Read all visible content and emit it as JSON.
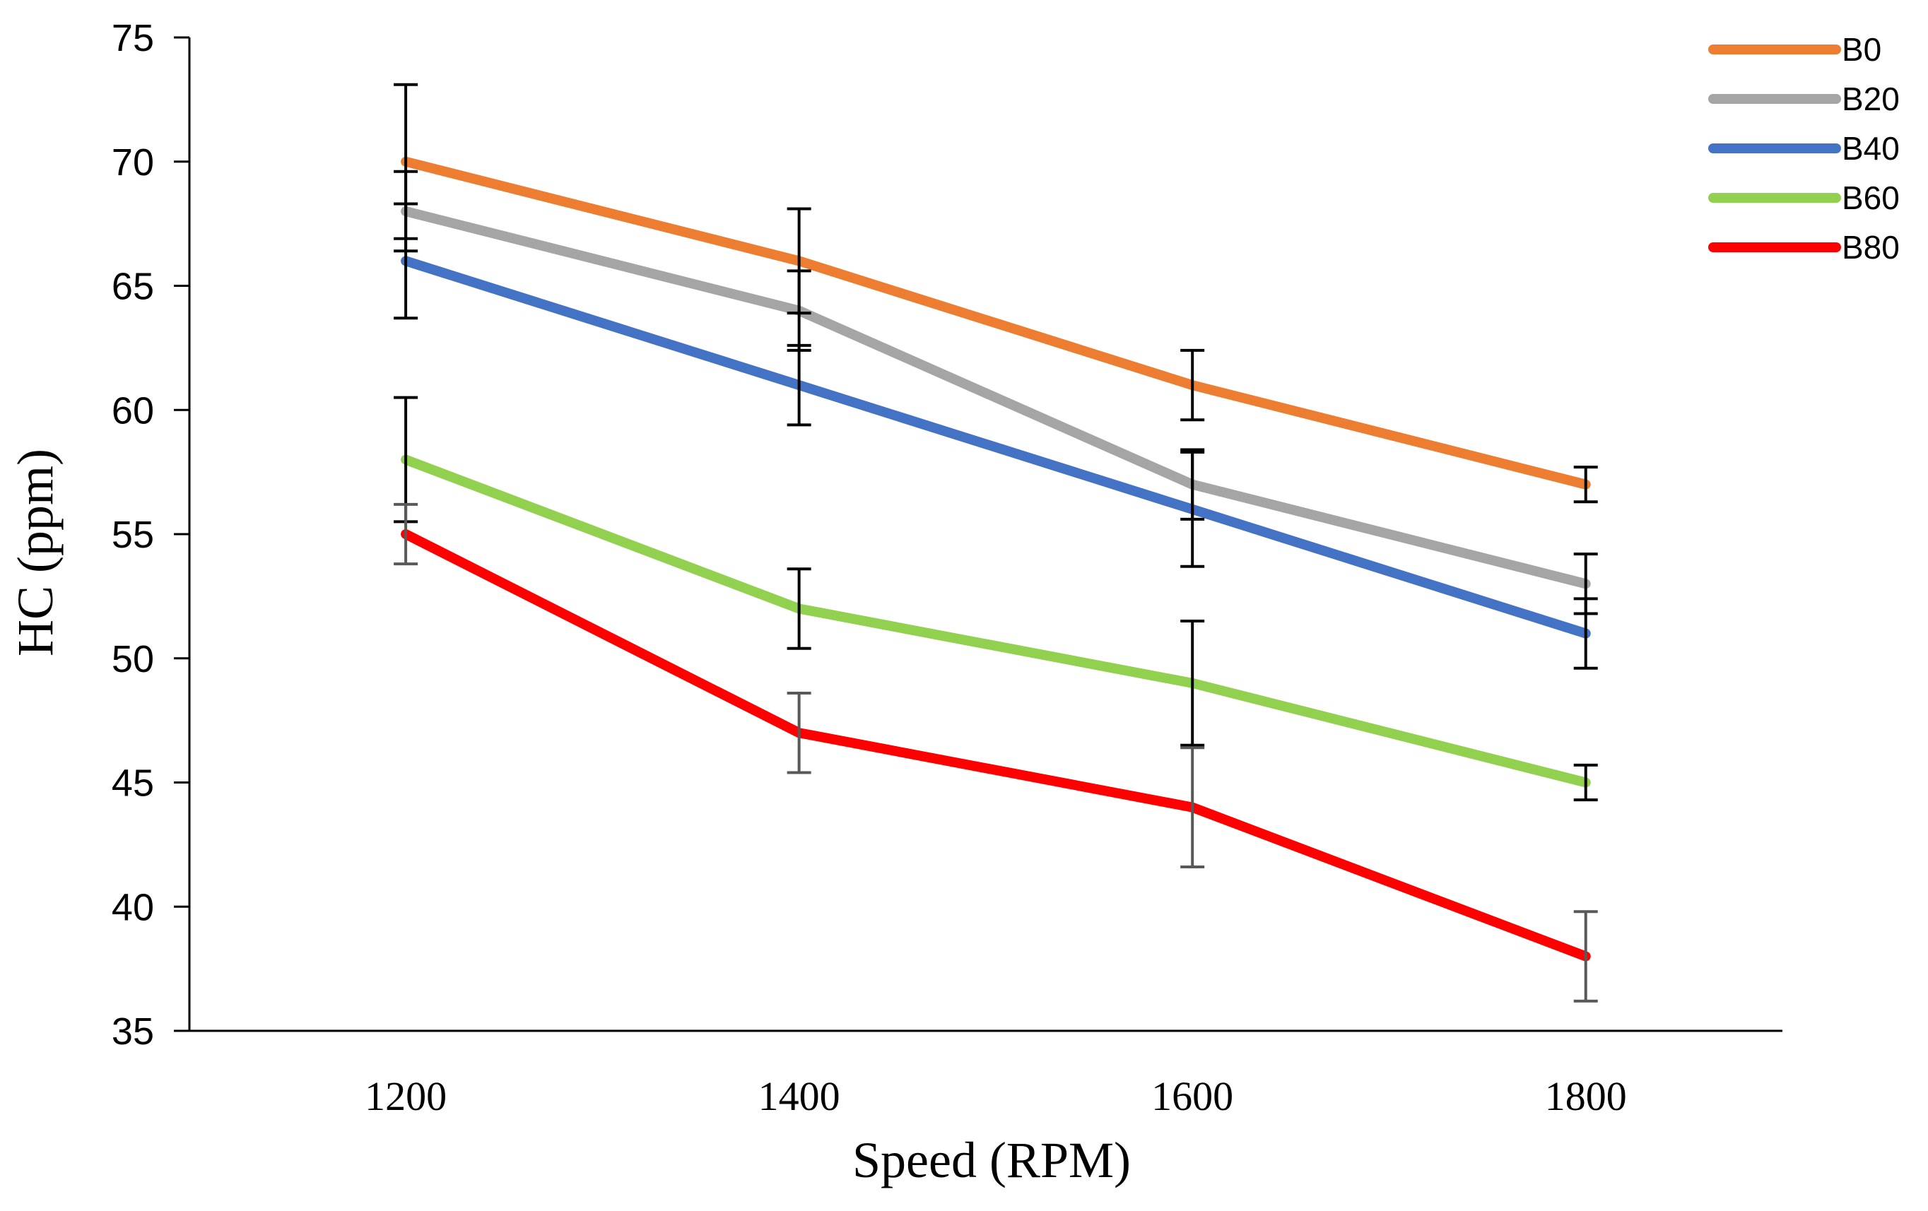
{
  "chart_data": {
    "type": "line",
    "title": "",
    "xlabel": "Speed (RPM)",
    "ylabel": "HC (ppm)",
    "x": [
      1200,
      1400,
      1600,
      1800
    ],
    "x_tick_labels": [
      "1200",
      "1400",
      "1600",
      "1800"
    ],
    "xlim": [
      1090,
      1900
    ],
    "ylim": [
      35,
      75
    ],
    "y_ticks": [
      35,
      40,
      45,
      50,
      55,
      60,
      65,
      70,
      75
    ],
    "y_tick_labels": [
      "35",
      "40",
      "45",
      "50",
      "55",
      "60",
      "65",
      "70",
      "75"
    ],
    "grid": false,
    "legend_position": "top-right",
    "series": [
      {
        "name": "B0",
        "color": "#ED7D31",
        "values": [
          70,
          66,
          61,
          57
        ],
        "error": [
          3.1,
          2.1,
          1.4,
          0.7
        ],
        "error_color": "#000000"
      },
      {
        "name": "B20",
        "color": "#A5A5A5",
        "values": [
          68,
          64,
          57,
          53
        ],
        "error": [
          1.6,
          1.6,
          1.4,
          1.2
        ],
        "error_color": "#000000"
      },
      {
        "name": "B40",
        "color": "#4472C4",
        "values": [
          66,
          61,
          56,
          51
        ],
        "error": [
          2.3,
          1.6,
          2.3,
          1.4
        ],
        "error_color": "#000000"
      },
      {
        "name": "B60",
        "color": "#92D050",
        "values": [
          58,
          52,
          49,
          45
        ],
        "error": [
          2.5,
          1.6,
          2.5,
          0.7
        ],
        "error_color": "#000000"
      },
      {
        "name": "B80",
        "color": "#FF0000",
        "values": [
          55,
          47,
          44,
          38
        ],
        "error": [
          1.2,
          1.6,
          2.4,
          1.8
        ],
        "error_color": "#595959"
      }
    ]
  }
}
